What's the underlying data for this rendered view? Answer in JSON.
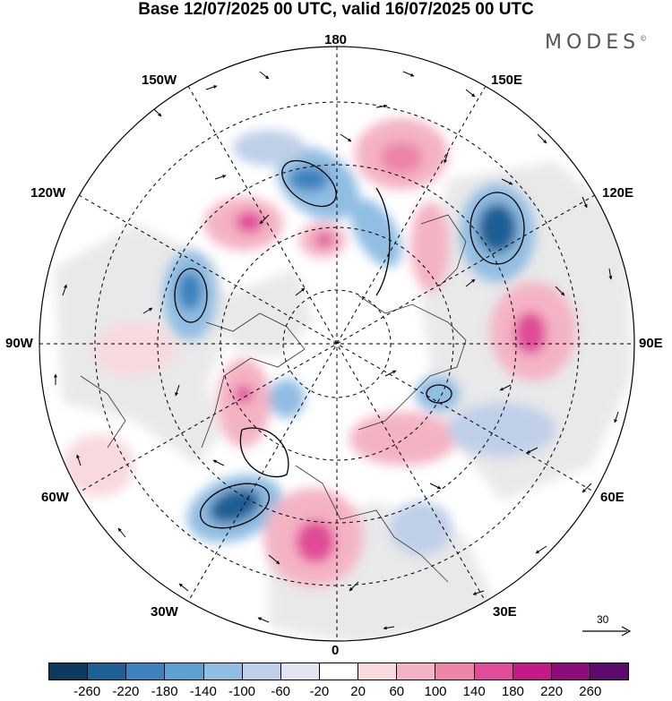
{
  "title": "Base 12/07/2025 00 UTC, valid 16/07/2025 00 UTC",
  "brand": "MODES",
  "brand_mark": "©",
  "longitude_labels": {
    "top": "180",
    "bottom": "0",
    "left": "90W",
    "right": "90E",
    "upper_left_1": "150W",
    "upper_left_2": "120W",
    "lower_left_1": "60W",
    "lower_left_2": "30W",
    "upper_right_1": "150E",
    "upper_right_2": "120E",
    "lower_right_1": "60E",
    "lower_right_2": "30E"
  },
  "reference_vector": {
    "value": "30",
    "icon": "arrow-right-icon"
  },
  "colorbar": {
    "colors": [
      "#0d3a5c",
      "#1e5f94",
      "#3b82be",
      "#5fa0d2",
      "#90bde2",
      "#bfcfe8",
      "#e3e4f2",
      "#ffffff",
      "#f8d9de",
      "#f4b3c4",
      "#ec85a8",
      "#e04c98",
      "#c41a88",
      "#8c0c7a",
      "#5a0b6c"
    ],
    "tick_labels": [
      "-260",
      "-220",
      "-180",
      "-140",
      "-100",
      "-60",
      "-20",
      "20",
      "60",
      "100",
      "140",
      "180",
      "220",
      "260"
    ]
  }
}
